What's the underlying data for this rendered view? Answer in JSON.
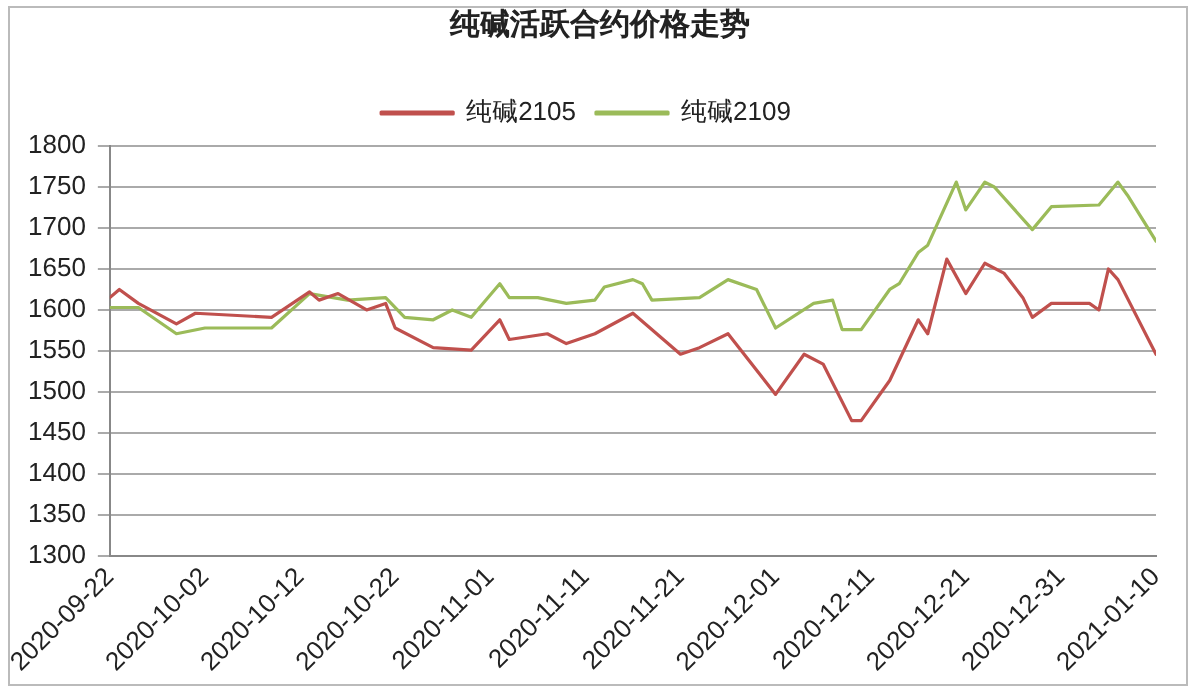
{
  "chart_data": {
    "type": "line",
    "title": "纯碱活跃合约价格走势",
    "xlim": [
      "2020-09-22",
      "2021-01-10"
    ],
    "xticks": [
      "2020-09-22",
      "2020-10-02",
      "2020-10-12",
      "2020-10-22",
      "2020-11-01",
      "2020-11-11",
      "2020-11-21",
      "2020-12-01",
      "2020-12-11",
      "2020-12-21",
      "2020-12-31",
      "2021-01-10"
    ],
    "ylim": [
      1300,
      1800
    ],
    "yticks": [
      1300,
      1350,
      1400,
      1450,
      1500,
      1550,
      1600,
      1650,
      1700,
      1750,
      1800
    ],
    "grid": "y",
    "legend": "top",
    "marker": "none",
    "line_style": "solid",
    "series": [
      {
        "name": "纯碱2105",
        "color": "#c0504d",
        "x": [
          "2020-09-22",
          "2020-09-23",
          "2020-09-25",
          "2020-09-29",
          "2020-10-01",
          "2020-10-09",
          "2020-10-13",
          "2020-10-14",
          "2020-10-16",
          "2020-10-19",
          "2020-10-21",
          "2020-10-22",
          "2020-10-26",
          "2020-10-30",
          "2020-11-02",
          "2020-11-03",
          "2020-11-07",
          "2020-11-09",
          "2020-11-12",
          "2020-11-16",
          "2020-11-21",
          "2020-11-23",
          "2020-11-26",
          "2020-12-01",
          "2020-12-04",
          "2020-12-06",
          "2020-12-09",
          "2020-12-10",
          "2020-12-13",
          "2020-12-16",
          "2020-12-17",
          "2020-12-19",
          "2020-12-21",
          "2020-12-23",
          "2020-12-25",
          "2020-12-27",
          "2020-12-28",
          "2020-12-30",
          "2021-01-03",
          "2021-01-04",
          "2021-01-05",
          "2021-01-06",
          "2021-01-10"
        ],
        "values": [
          1615,
          1625,
          1608,
          1583,
          1596,
          1591,
          1622,
          1612,
          1620,
          1600,
          1608,
          1578,
          1554,
          1551,
          1588,
          1564,
          1571,
          1559,
          1571,
          1596,
          1546,
          1554,
          1571,
          1497,
          1546,
          1534,
          1465,
          1465,
          1514,
          1588,
          1571,
          1662,
          1620,
          1657,
          1645,
          1615,
          1591,
          1608,
          1608,
          1600,
          1650,
          1637,
          1546
        ]
      },
      {
        "name": "纯碱2109",
        "color": "#9bbb59",
        "x": [
          "2020-09-22",
          "2020-09-25",
          "2020-09-29",
          "2020-10-02",
          "2020-10-09",
          "2020-10-13",
          "2020-10-17",
          "2020-10-21",
          "2020-10-23",
          "2020-10-26",
          "2020-10-28",
          "2020-10-30",
          "2020-11-02",
          "2020-11-03",
          "2020-11-06",
          "2020-11-09",
          "2020-11-12",
          "2020-11-13",
          "2020-11-16",
          "2020-11-17",
          "2020-11-18",
          "2020-11-23",
          "2020-11-26",
          "2020-11-29",
          "2020-12-01",
          "2020-12-05",
          "2020-12-07",
          "2020-12-08",
          "2020-12-10",
          "2020-12-13",
          "2020-12-14",
          "2020-12-16",
          "2020-12-17",
          "2020-12-20",
          "2020-12-21",
          "2020-12-23",
          "2020-12-24",
          "2020-12-28",
          "2020-12-30",
          "2021-01-04",
          "2021-01-06",
          "2021-01-07",
          "2021-01-10"
        ],
        "values": [
          1603,
          1603,
          1571,
          1578,
          1578,
          1620,
          1612,
          1615,
          1591,
          1588,
          1600,
          1591,
          1632,
          1615,
          1615,
          1608,
          1612,
          1628,
          1637,
          1632,
          1612,
          1615,
          1637,
          1625,
          1578,
          1608,
          1612,
          1576,
          1576,
          1625,
          1632,
          1670,
          1679,
          1756,
          1722,
          1756,
          1750,
          1698,
          1726,
          1728,
          1756,
          1740,
          1684
        ]
      }
    ]
  }
}
